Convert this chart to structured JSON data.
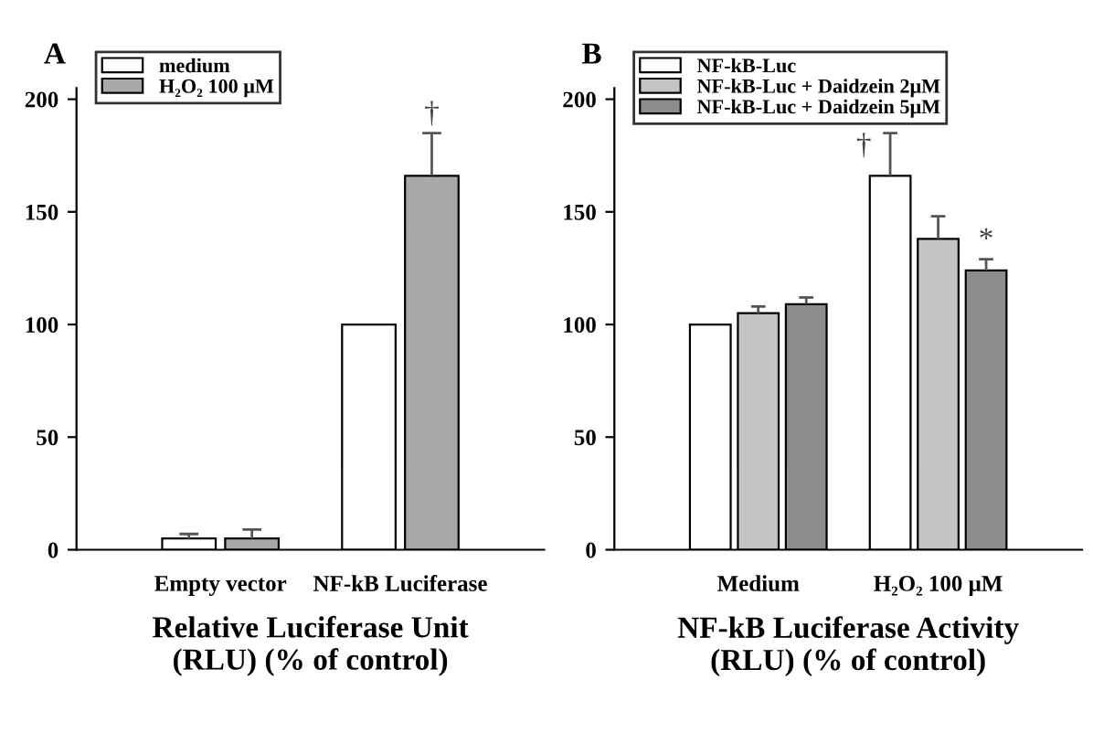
{
  "chart_data": [
    {
      "type": "bar",
      "title": "A",
      "categories": [
        "Empty vector",
        "NF-kB Luciferase"
      ],
      "series": [
        {
          "name": "medium",
          "color": "#ffffff",
          "values": [
            5,
            100
          ],
          "errors": [
            [
              5,
              7
            ],
            null
          ]
        },
        {
          "name": "H₂O₂ 100 μM",
          "color": "#a8a8a8",
          "values": [
            5,
            166
          ],
          "errors": [
            [
              5,
              9
            ],
            [
              166,
              185
            ]
          ]
        }
      ],
      "xlabel": "Relative Luciferase Unit\n(RLU) (% of control)",
      "ylim": [
        0,
        205
      ],
      "yticks": [
        0,
        50,
        100,
        150,
        200
      ],
      "grid": false,
      "legend": "top left",
      "annotations": [
        "†"
      ]
    },
    {
      "type": "bar",
      "title": "B",
      "categories": [
        "Medium",
        "H₂O₂ 100 μM"
      ],
      "series": [
        {
          "name": "NF-kB-Luc",
          "color": "#ffffff",
          "values": [
            100,
            166
          ],
          "errors": [
            null,
            [
              166,
              185
            ]
          ]
        },
        {
          "name": "NF-kB-Luc + Daidzein 2μM",
          "color": "#c4c4c4",
          "values": [
            105,
            138
          ],
          "errors": [
            [
              105,
              108
            ],
            [
              138,
              148
            ]
          ]
        },
        {
          "name": "NF-kB-Luc + Daidzein 5μM",
          "color": "#8c8c8c",
          "values": [
            109,
            124
          ],
          "errors": [
            [
              109,
              112
            ],
            [
              124,
              129
            ]
          ]
        }
      ],
      "xlabel": "NF-kB Luciferase Activity\n(RLU) (% of control)",
      "ylim": [
        0,
        205
      ],
      "yticks": [
        0,
        50,
        100,
        150,
        200
      ],
      "grid": false,
      "legend": "top left",
      "annotations": [
        "†",
        "*"
      ]
    }
  ]
}
